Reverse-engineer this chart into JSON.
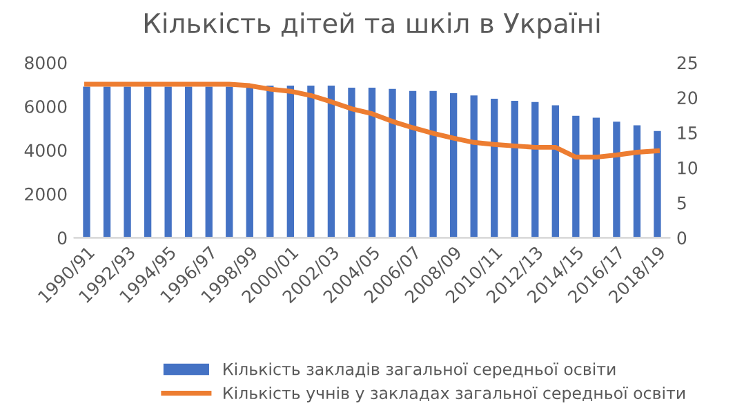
{
  "chart_data": {
    "type": "bar",
    "title": "Кількість дітей та шкіл в Україні",
    "categories": [
      "1990/91",
      null,
      "1992/93",
      null,
      "1994/95",
      null,
      "1996/97",
      null,
      "1998/99",
      null,
      "2000/01",
      null,
      "2002/03",
      null,
      "2004/05",
      null,
      "2006/07",
      null,
      "2008/09",
      null,
      "2010/11",
      null,
      "2012/13",
      null,
      "2014/15",
      null,
      "2016/17",
      null,
      "2018/19"
    ],
    "series": [
      {
        "name": "Кількість закладів загальної середньої освіти",
        "color": "#4472c4",
        "values": [
          6900,
          6900,
          6900,
          6900,
          6900,
          6900,
          6900,
          6900,
          6900,
          6950,
          6950,
          6950,
          6950,
          6850,
          6850,
          6800,
          6700,
          6700,
          6600,
          6500,
          6350,
          6250,
          6200,
          6050,
          5570,
          5480,
          5300,
          5130,
          4870
        ]
      },
      {
        "name": "Кількість учнів у закладах загальної середньої освіти",
        "type": "line",
        "axis": "y2",
        "color": "#ed7d31",
        "values": [
          21.9,
          21.9,
          21.9,
          21.9,
          21.9,
          21.9,
          21.9,
          21.9,
          21.7,
          21.2,
          20.9,
          20.3,
          19.4,
          18.4,
          17.7,
          16.6,
          15.7,
          14.9,
          14.2,
          13.6,
          13.3,
          13.1,
          12.9,
          12.9,
          11.5,
          11.5,
          11.8,
          12.2,
          12.4
        ]
      }
    ],
    "ylim": [
      0,
      8000
    ],
    "yticks": [
      0,
      2000,
      4000,
      6000,
      8000
    ],
    "y2lim": [
      0,
      25
    ],
    "y2ticks": [
      0,
      5,
      10,
      15,
      20,
      25
    ],
    "grid": false,
    "legend": "bottom",
    "marker": "none",
    "line_style": "solid"
  }
}
